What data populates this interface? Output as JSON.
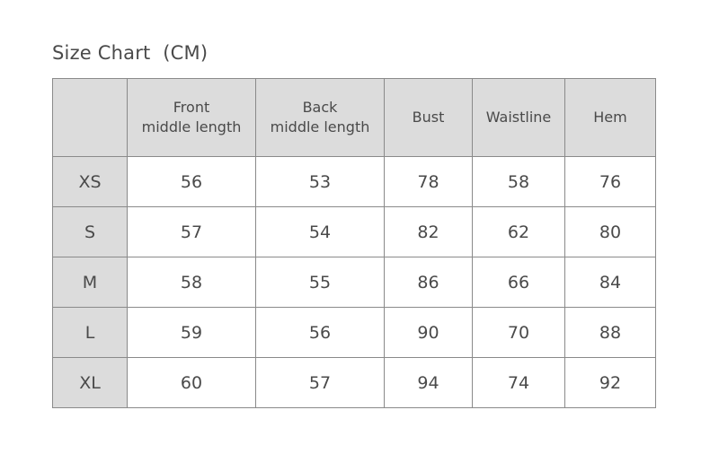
{
  "title": "Size Chart  (CM)",
  "table": {
    "headers": [
      "",
      "Front\nmiddle length",
      "Back\nmiddle length",
      "Bust",
      "Waistline",
      "Hem"
    ],
    "rows": [
      [
        "XS",
        "56",
        "53",
        "78",
        "58",
        "76"
      ],
      [
        "S",
        "57",
        "54",
        "82",
        "62",
        "80"
      ],
      [
        "M",
        "58",
        "55",
        "86",
        "66",
        "84"
      ],
      [
        "L",
        "59",
        "56",
        "90",
        "70",
        "88"
      ],
      [
        "XL",
        "60",
        "57",
        "94",
        "74",
        "92"
      ]
    ]
  },
  "colors": {
    "header_bg": "#dcdcdc",
    "border": "#8a8a8a",
    "text": "#4a4a4a"
  }
}
